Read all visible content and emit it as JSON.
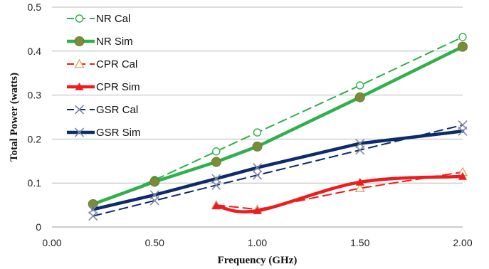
{
  "chart_data": {
    "type": "line",
    "xlabel": "Frequency (GHz)",
    "ylabel": "Total Power  (watts)",
    "xlim": [
      0,
      2
    ],
    "ylim": [
      0,
      0.5
    ],
    "x_ticks": [
      "0.00",
      "0.50",
      "1.00",
      "1.50",
      "2.00"
    ],
    "y_ticks": [
      "0",
      "0.1",
      "0.2",
      "0.3",
      "0.4",
      "0.5"
    ],
    "grid": "horizontal",
    "legend_position": "top-left",
    "series": [
      {
        "name": "NR Cal",
        "color": "#2fb04a",
        "dashed": true,
        "marker": "open-circle",
        "smooth": false,
        "x": [
          0.2,
          0.5,
          0.8,
          1.0,
          1.5,
          2.0
        ],
        "y": [
          0.05,
          0.107,
          0.172,
          0.215,
          0.322,
          0.432
        ]
      },
      {
        "name": "NR Sim",
        "color": "#2fb04a",
        "dashed": false,
        "marker": "filled-circle",
        "smooth": false,
        "x": [
          0.2,
          0.5,
          0.8,
          1.0,
          1.5,
          2.0
        ],
        "y": [
          0.052,
          0.103,
          0.148,
          0.183,
          0.295,
          0.41
        ]
      },
      {
        "name": "CPR Cal",
        "color": "#ee1c1c",
        "dashed": true,
        "marker": "open-triangle",
        "smooth": false,
        "x": [
          0.8,
          1.0,
          1.5,
          2.0
        ],
        "y": [
          0.05,
          0.04,
          0.088,
          0.125
        ]
      },
      {
        "name": "CPR Sim",
        "color": "#ee1c1c",
        "dashed": false,
        "marker": "filled-triangle",
        "smooth": true,
        "x": [
          0.8,
          1.0,
          1.5,
          2.0
        ],
        "y": [
          0.048,
          0.037,
          0.102,
          0.115
        ]
      },
      {
        "name": "GSR Cal",
        "color": "#0d2a6b",
        "dashed": true,
        "marker": "x",
        "smooth": false,
        "x": [
          0.2,
          0.5,
          0.8,
          1.0,
          1.5,
          2.0
        ],
        "y": [
          0.025,
          0.06,
          0.095,
          0.118,
          0.175,
          0.232
        ]
      },
      {
        "name": "GSR Sim",
        "color": "#0d2a6b",
        "dashed": false,
        "marker": "x",
        "smooth": false,
        "x": [
          0.2,
          0.5,
          0.8,
          1.0,
          1.5,
          2.0
        ],
        "y": [
          0.04,
          0.073,
          0.11,
          0.135,
          0.19,
          0.218
        ]
      }
    ]
  }
}
